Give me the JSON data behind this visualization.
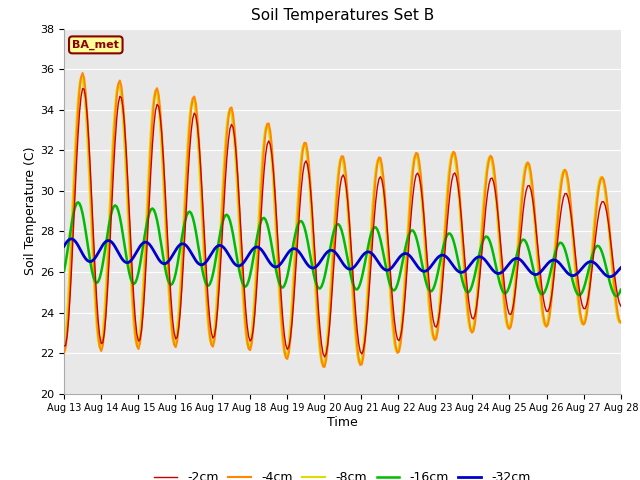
{
  "title": "Soil Temperatures Set B",
  "xlabel": "Time",
  "ylabel": "Soil Temperature (C)",
  "ylim": [
    20,
    38
  ],
  "yticks": [
    20,
    22,
    24,
    26,
    28,
    30,
    32,
    34,
    36,
    38
  ],
  "xtick_labels": [
    "Aug 13",
    "Aug 14",
    "Aug 15",
    "Aug 16",
    "Aug 17",
    "Aug 18",
    "Aug 19",
    "Aug 20",
    "Aug 21",
    "Aug 22",
    "Aug 23",
    "Aug 24",
    "Aug 25",
    "Aug 26",
    "Aug 27",
    "Aug 28"
  ],
  "legend_labels": [
    "-2cm",
    "-4cm",
    "-8cm",
    "-16cm",
    "-32cm"
  ],
  "annotation_text": "BA_met",
  "annotation_color": "#8b0000",
  "annotation_bg": "#ffff99",
  "background_color": "#e8e8e8",
  "line_colors": [
    "#cc0000",
    "#ff8800",
    "#dddd00",
    "#00bb00",
    "#0000cc"
  ],
  "line_widths": [
    1.0,
    1.5,
    1.5,
    1.8,
    2.0
  ]
}
